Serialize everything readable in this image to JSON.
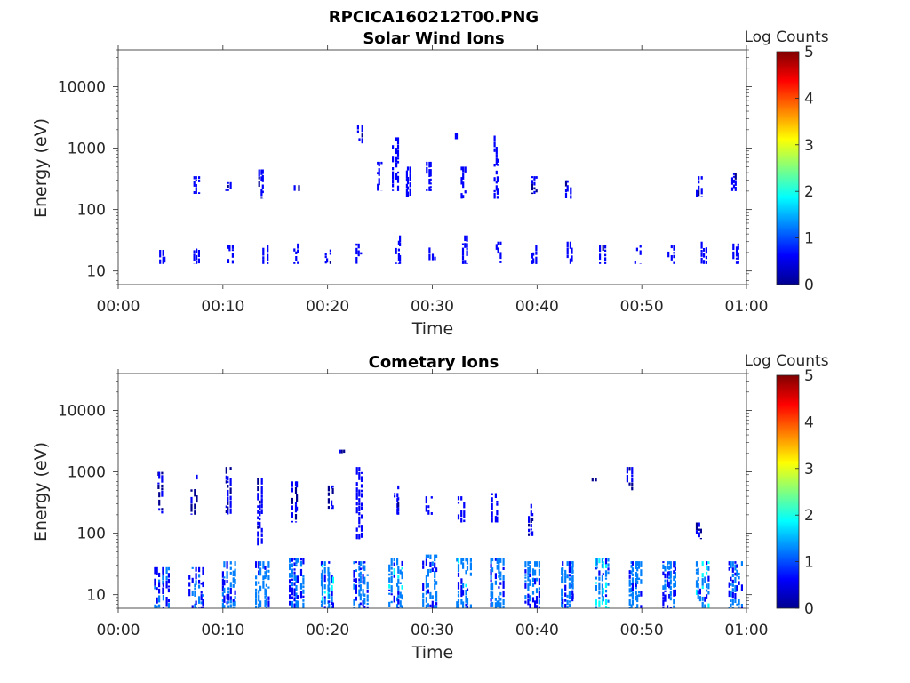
{
  "figure_title": "RPCICA160212T00.PNG",
  "colors": {
    "axis": "#262626",
    "colormap": [
      "#00008f",
      "#0000ff",
      "#0080ff",
      "#00ffff",
      "#80ff80",
      "#ffff00",
      "#ff8000",
      "#ff0000",
      "#800000"
    ]
  },
  "chart_data": [
    {
      "type": "heatmap",
      "title": "Solar Wind Ions",
      "xlabel": "Time",
      "ylabel": "Energy (eV)",
      "xlim_min": [
        0,
        60
      ],
      "ylim_ev": [
        6,
        40000
      ],
      "y_scale": "log",
      "x_ticks": [
        0,
        10,
        20,
        30,
        40,
        50,
        60
      ],
      "x_tick_labels": [
        "00:00",
        "00:10",
        "00:20",
        "00:30",
        "00:40",
        "00:50",
        "01:00"
      ],
      "y_ticks": [
        10,
        100,
        1000,
        10000
      ],
      "y_tick_labels": [
        "10",
        "100",
        "1000",
        "10000"
      ],
      "colorbar": {
        "label": "Log Counts",
        "range": [
          0,
          5
        ],
        "ticks": [
          "0",
          "1",
          "2",
          "3",
          "4",
          "5"
        ]
      },
      "events": [
        {
          "t": 4.3,
          "e_lo": 13,
          "e_hi": 22,
          "v": 0.5
        },
        {
          "t": 7.5,
          "e_lo": 13,
          "e_hi": 26,
          "v": 0.5
        },
        {
          "t": 10.7,
          "e_lo": 13,
          "e_hi": 26,
          "v": 0.5
        },
        {
          "t": 14.0,
          "e_lo": 13,
          "e_hi": 26,
          "v": 0.5
        },
        {
          "t": 17.0,
          "e_lo": 13,
          "e_hi": 28,
          "v": 0.5
        },
        {
          "t": 20.0,
          "e_lo": 13,
          "e_hi": 26,
          "v": 0.5
        },
        {
          "t": 23.0,
          "e_lo": 13,
          "e_hi": 28,
          "v": 0.5
        },
        {
          "t": 26.8,
          "e_lo": 13,
          "e_hi": 38,
          "v": 0.6
        },
        {
          "t": 30.0,
          "e_lo": 15,
          "e_hi": 24,
          "v": 0.5
        },
        {
          "t": 33.2,
          "e_lo": 13,
          "e_hi": 38,
          "v": 0.6
        },
        {
          "t": 36.3,
          "e_lo": 13,
          "e_hi": 30,
          "v": 0.6
        },
        {
          "t": 39.7,
          "e_lo": 13,
          "e_hi": 26,
          "v": 0.5
        },
        {
          "t": 43.2,
          "e_lo": 13,
          "e_hi": 30,
          "v": 0.5
        },
        {
          "t": 46.3,
          "e_lo": 13,
          "e_hi": 26,
          "v": 0.5
        },
        {
          "t": 49.6,
          "e_lo": 13,
          "e_hi": 26,
          "v": 0.5
        },
        {
          "t": 52.8,
          "e_lo": 13,
          "e_hi": 26,
          "v": 0.5
        },
        {
          "t": 55.9,
          "e_lo": 13,
          "e_hi": 30,
          "v": 0.5
        },
        {
          "t": 59.0,
          "e_lo": 13,
          "e_hi": 28,
          "v": 0.5
        },
        {
          "t": 7.5,
          "e_lo": 180,
          "e_hi": 350,
          "v": 0.5
        },
        {
          "t": 10.5,
          "e_lo": 200,
          "e_hi": 280,
          "v": 0.4
        },
        {
          "t": 13.7,
          "e_lo": 150,
          "e_hi": 450,
          "v": 0.5
        },
        {
          "t": 17.0,
          "e_lo": 200,
          "e_hi": 250,
          "v": 0.3
        },
        {
          "t": 25.0,
          "e_lo": 200,
          "e_hi": 600,
          "v": 0.5
        },
        {
          "t": 26.5,
          "e_lo": 200,
          "e_hi": 1500,
          "v": 0.5
        },
        {
          "t": 27.7,
          "e_lo": 160,
          "e_hi": 500,
          "v": 0.6
        },
        {
          "t": 29.7,
          "e_lo": 200,
          "e_hi": 600,
          "v": 0.5
        },
        {
          "t": 33.0,
          "e_lo": 150,
          "e_hi": 500,
          "v": 0.6
        },
        {
          "t": 36.1,
          "e_lo": 150,
          "e_hi": 1600,
          "v": 0.6
        },
        {
          "t": 39.8,
          "e_lo": 180,
          "e_hi": 350,
          "v": 0.4
        },
        {
          "t": 43.0,
          "e_lo": 150,
          "e_hi": 300,
          "v": 0.4
        },
        {
          "t": 55.5,
          "e_lo": 160,
          "e_hi": 350,
          "v": 0.5
        },
        {
          "t": 58.8,
          "e_lo": 200,
          "e_hi": 400,
          "v": 0.4
        },
        {
          "t": 23.1,
          "e_lo": 1200,
          "e_hi": 2400,
          "v": 0.4
        },
        {
          "t": 32.4,
          "e_lo": 1400,
          "e_hi": 1800,
          "v": 0.4
        }
      ]
    },
    {
      "type": "heatmap",
      "title": "Cometary Ions",
      "xlabel": "Time",
      "ylabel": "Energy (eV)",
      "xlim_min": [
        0,
        60
      ],
      "ylim_ev": [
        6,
        40000
      ],
      "y_scale": "log",
      "x_ticks": [
        0,
        10,
        20,
        30,
        40,
        50,
        60
      ],
      "x_tick_labels": [
        "00:00",
        "00:10",
        "00:20",
        "00:30",
        "00:40",
        "00:50",
        "01:00"
      ],
      "y_ticks": [
        10,
        100,
        1000,
        10000
      ],
      "y_tick_labels": [
        "10",
        "100",
        "1000",
        "10000"
      ],
      "colorbar": {
        "label": "Log Counts",
        "range": [
          0,
          5
        ],
        "ticks": [
          "0",
          "1",
          "2",
          "3",
          "4",
          "5"
        ]
      },
      "events": [
        {
          "t": 4.2,
          "e_lo": 6,
          "e_hi": 28,
          "v": 0.8
        },
        {
          "t": 7.5,
          "e_lo": 6,
          "e_hi": 28,
          "v": 0.9
        },
        {
          "t": 10.6,
          "e_lo": 6,
          "e_hi": 35,
          "v": 1.2
        },
        {
          "t": 13.8,
          "e_lo": 6,
          "e_hi": 35,
          "v": 1.1
        },
        {
          "t": 17.0,
          "e_lo": 6,
          "e_hi": 40,
          "v": 1.0
        },
        {
          "t": 20.0,
          "e_lo": 6,
          "e_hi": 35,
          "v": 1.2
        },
        {
          "t": 23.2,
          "e_lo": 6,
          "e_hi": 35,
          "v": 1.0
        },
        {
          "t": 26.6,
          "e_lo": 6,
          "e_hi": 40,
          "v": 1.2
        },
        {
          "t": 29.8,
          "e_lo": 6,
          "e_hi": 45,
          "v": 1.1
        },
        {
          "t": 33.0,
          "e_lo": 6,
          "e_hi": 40,
          "v": 1.2
        },
        {
          "t": 36.2,
          "e_lo": 6,
          "e_hi": 40,
          "v": 1.1
        },
        {
          "t": 39.6,
          "e_lo": 6,
          "e_hi": 35,
          "v": 1.0
        },
        {
          "t": 42.9,
          "e_lo": 6,
          "e_hi": 35,
          "v": 1.1
        },
        {
          "t": 46.2,
          "e_lo": 6,
          "e_hi": 40,
          "v": 1.3
        },
        {
          "t": 49.4,
          "e_lo": 6,
          "e_hi": 35,
          "v": 1.2
        },
        {
          "t": 52.6,
          "e_lo": 6,
          "e_hi": 35,
          "v": 1.1
        },
        {
          "t": 55.8,
          "e_lo": 6,
          "e_hi": 35,
          "v": 1.3
        },
        {
          "t": 58.9,
          "e_lo": 6,
          "e_hi": 35,
          "v": 1.1
        },
        {
          "t": 4.0,
          "e_lo": 200,
          "e_hi": 1000,
          "v": 0.3
        },
        {
          "t": 7.3,
          "e_lo": 200,
          "e_hi": 900,
          "v": 0.3
        },
        {
          "t": 10.5,
          "e_lo": 200,
          "e_hi": 1200,
          "v": 0.3
        },
        {
          "t": 13.6,
          "e_lo": 60,
          "e_hi": 800,
          "v": 0.4
        },
        {
          "t": 16.9,
          "e_lo": 150,
          "e_hi": 700,
          "v": 0.4
        },
        {
          "t": 20.3,
          "e_lo": 250,
          "e_hi": 600,
          "v": 0.3
        },
        {
          "t": 23.0,
          "e_lo": 80,
          "e_hi": 1200,
          "v": 0.5
        },
        {
          "t": 26.6,
          "e_lo": 200,
          "e_hi": 600,
          "v": 0.4
        },
        {
          "t": 29.7,
          "e_lo": 200,
          "e_hi": 400,
          "v": 0.4
        },
        {
          "t": 32.8,
          "e_lo": 150,
          "e_hi": 400,
          "v": 0.6
        },
        {
          "t": 36.0,
          "e_lo": 150,
          "e_hi": 450,
          "v": 0.5
        },
        {
          "t": 39.4,
          "e_lo": 90,
          "e_hi": 300,
          "v": 0.3
        },
        {
          "t": 45.5,
          "e_lo": 800,
          "e_hi": 800,
          "v": 0.3
        },
        {
          "t": 48.8,
          "e_lo": 500,
          "e_hi": 1200,
          "v": 0.3
        },
        {
          "t": 55.5,
          "e_lo": 80,
          "e_hi": 150,
          "v": 0.3
        },
        {
          "t": 21.4,
          "e_lo": 2300,
          "e_hi": 2300,
          "v": 0.3
        }
      ]
    }
  ]
}
